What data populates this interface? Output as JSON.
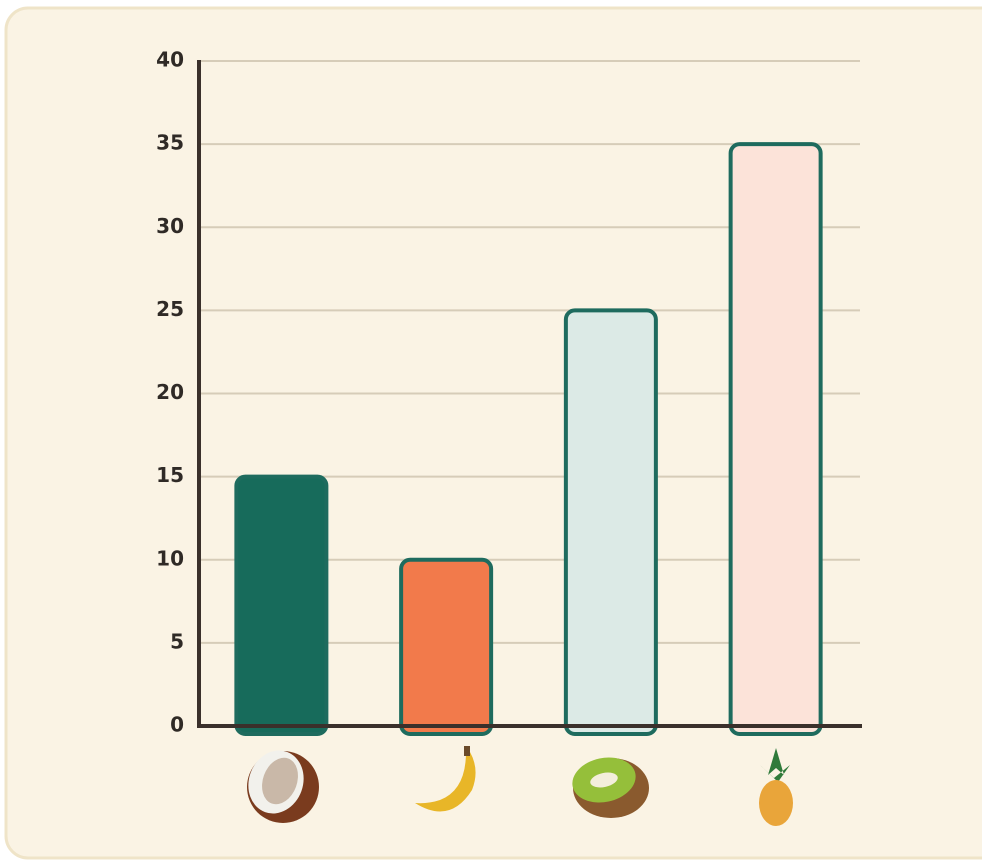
{
  "chart_data": {
    "type": "bar",
    "categories": [
      null,
      null,
      null,
      null
    ],
    "values": [
      15,
      10,
      25,
      35
    ],
    "colors": [
      "#176b5b",
      "#f27a4b",
      "#dceae6",
      "#fce3d9"
    ],
    "ylim": [
      0,
      40
    ],
    "yticks": [
      0,
      5,
      10,
      15,
      20,
      25,
      30,
      35,
      40
    ],
    "grid": true
  }
}
